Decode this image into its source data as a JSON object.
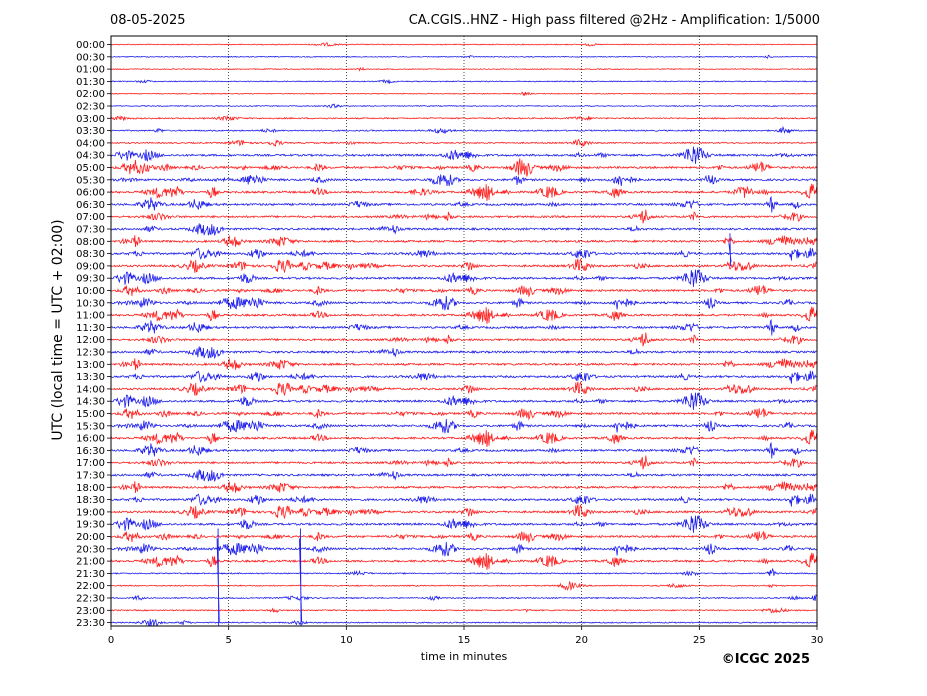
{
  "header": {
    "date": "08-05-2025",
    "title": "CA.CGIS..HNZ - High pass filtered @2Hz - Amplification: 1/5000"
  },
  "footer": {
    "copyright": "©ICGC 2025"
  },
  "chart_data": {
    "type": "helicorder",
    "title": "CA.CGIS..HNZ - High pass filtered @2Hz - Amplification: 1/5000",
    "date": "08-05-2025",
    "xlabel": "time in minutes",
    "ylabel": "UTC (local time = UTC + 02:00)",
    "xlim": [
      0,
      30
    ],
    "x_ticks": [
      0,
      5,
      10,
      15,
      20,
      25,
      30
    ],
    "x_tick_labels": [
      "0",
      "5",
      "10",
      "15",
      "20",
      "25",
      "30"
    ],
    "vertical_gridlines_at_minutes": [
      5,
      10,
      15,
      20,
      25
    ],
    "row_labels": [
      "00:00",
      "00:30",
      "01:00",
      "01:30",
      "02:00",
      "02:30",
      "03:00",
      "03:30",
      "04:00",
      "04:30",
      "05:00",
      "05:30",
      "06:00",
      "06:30",
      "07:00",
      "07:30",
      "08:00",
      "08:30",
      "09:00",
      "09:30",
      "10:00",
      "10:30",
      "11:00",
      "11:30",
      "12:00",
      "12:30",
      "13:00",
      "13:30",
      "14:00",
      "14:30",
      "15:00",
      "15:30",
      "16:00",
      "16:30",
      "17:00",
      "17:30",
      "18:00",
      "18:30",
      "19:00",
      "19:30",
      "20:00",
      "20:30",
      "21:00",
      "21:30",
      "22:00",
      "22:30",
      "23:00",
      "23:30"
    ],
    "trace_colors": [
      "#ff2020",
      "#2020ee"
    ],
    "spikes": [
      {
        "row": "20:00",
        "minute": 4.55
      },
      {
        "row": "20:00",
        "minute": 8.05
      },
      {
        "row": "08:00",
        "minute": 26.3
      }
    ]
  }
}
